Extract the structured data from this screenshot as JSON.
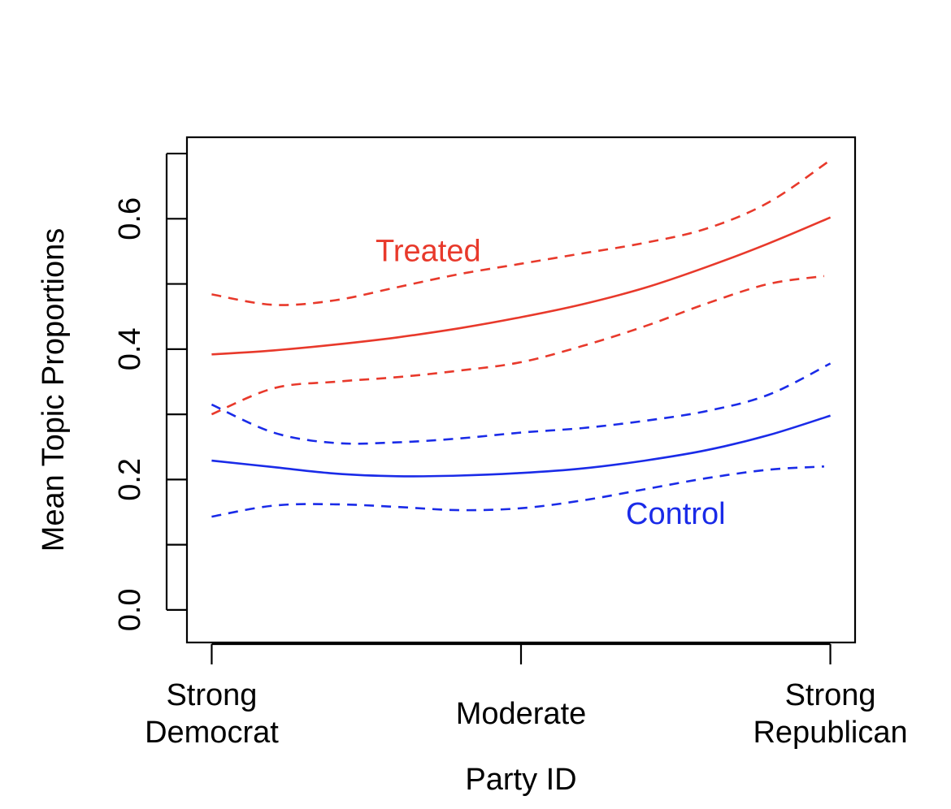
{
  "chart_data": {
    "type": "line",
    "title": "",
    "xlabel": "Party ID",
    "ylabel": "Mean Topic Proportions",
    "x_categories": [
      {
        "lines": [
          "Strong",
          "Democrat"
        ],
        "x": 0
      },
      {
        "lines": [
          "Moderate"
        ],
        "x": 0.5
      },
      {
        "lines": [
          "Strong",
          "Republican"
        ],
        "x": 1
      }
    ],
    "xlim": [
      -0.04,
      1.04
    ],
    "ylim": [
      -0.05,
      0.725
    ],
    "y_ticks": [
      0.0,
      0.1,
      0.2,
      0.3,
      0.4,
      0.5,
      0.6,
      0.7
    ],
    "y_tick_labels": [
      {
        "value": 0.0,
        "label": "0.0"
      },
      {
        "value": 0.2,
        "label": "0.2"
      },
      {
        "value": 0.4,
        "label": "0.4"
      },
      {
        "value": 0.6,
        "label": "0.6"
      }
    ],
    "grid": false,
    "series": [
      {
        "key": "treated-mean",
        "color": "#e8392b",
        "dashed": false,
        "x": [
          0,
          0.1,
          0.2,
          0.3,
          0.4,
          0.5,
          0.6,
          0.7,
          0.8,
          0.9,
          1.0
        ],
        "y": [
          0.392,
          0.398,
          0.407,
          0.418,
          0.432,
          0.449,
          0.469,
          0.494,
          0.526,
          0.562,
          0.602
        ]
      },
      {
        "key": "treated-upper",
        "color": "#e8392b",
        "dashed": true,
        "x": [
          0,
          0.1,
          0.2,
          0.3,
          0.4,
          0.5,
          0.6,
          0.7,
          0.8,
          0.9,
          1.0
        ],
        "y": [
          0.484,
          0.468,
          0.475,
          0.495,
          0.515,
          0.531,
          0.547,
          0.563,
          0.585,
          0.625,
          0.69
        ]
      },
      {
        "key": "treated-lower",
        "color": "#e8392b",
        "dashed": true,
        "x": [
          0,
          0.1,
          0.2,
          0.3,
          0.4,
          0.5,
          0.6,
          0.7,
          0.8,
          0.9,
          0.99
        ],
        "y": [
          0.3,
          0.34,
          0.35,
          0.357,
          0.367,
          0.38,
          0.405,
          0.435,
          0.47,
          0.5,
          0.512
        ]
      },
      {
        "key": "control-mean",
        "color": "#1a2be8",
        "dashed": false,
        "x": [
          0,
          0.1,
          0.2,
          0.3,
          0.4,
          0.5,
          0.6,
          0.7,
          0.8,
          0.9,
          1.0
        ],
        "y": [
          0.229,
          0.219,
          0.209,
          0.205,
          0.206,
          0.21,
          0.217,
          0.229,
          0.245,
          0.268,
          0.298
        ]
      },
      {
        "key": "control-upper",
        "color": "#1a2be8",
        "dashed": true,
        "x": [
          0,
          0.1,
          0.2,
          0.3,
          0.4,
          0.5,
          0.6,
          0.7,
          0.8,
          0.9,
          1.0
        ],
        "y": [
          0.315,
          0.272,
          0.256,
          0.257,
          0.263,
          0.272,
          0.279,
          0.29,
          0.305,
          0.33,
          0.378
        ]
      },
      {
        "key": "control-lower",
        "color": "#1a2be8",
        "dashed": true,
        "x": [
          0,
          0.1,
          0.2,
          0.3,
          0.4,
          0.5,
          0.6,
          0.7,
          0.8,
          0.9,
          0.99
        ],
        "y": [
          0.143,
          0.16,
          0.162,
          0.158,
          0.153,
          0.156,
          0.168,
          0.185,
          0.202,
          0.215,
          0.22
        ]
      }
    ],
    "annotations": [
      {
        "key": "treated-label",
        "text": "Treated",
        "color": "#e8392b",
        "x": 0.35,
        "y": 0.535
      },
      {
        "key": "control-label",
        "text": "Control",
        "color": "#1a2be8",
        "x": 0.75,
        "y": 0.132
      }
    ]
  }
}
